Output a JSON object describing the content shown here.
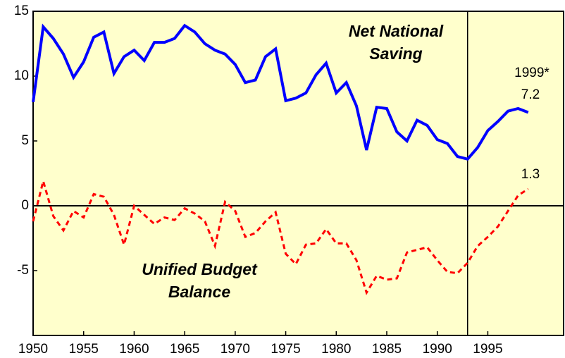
{
  "chart_data": {
    "type": "line",
    "x": [
      1950,
      1951,
      1952,
      1953,
      1954,
      1955,
      1956,
      1957,
      1958,
      1959,
      1960,
      1961,
      1962,
      1963,
      1964,
      1965,
      1966,
      1967,
      1968,
      1969,
      1970,
      1971,
      1972,
      1973,
      1974,
      1975,
      1976,
      1977,
      1978,
      1979,
      1980,
      1981,
      1982,
      1983,
      1984,
      1985,
      1986,
      1987,
      1988,
      1989,
      1990,
      1991,
      1992,
      1993,
      1994,
      1995,
      1996,
      1997,
      1998,
      1999
    ],
    "series": [
      {
        "name": "Net National Saving",
        "color": "#0000ff",
        "dash": false,
        "values": [
          8.0,
          13.8,
          12.9,
          11.7,
          9.9,
          11.1,
          13.0,
          13.4,
          10.2,
          11.5,
          12.0,
          11.2,
          12.6,
          12.6,
          12.9,
          13.9,
          13.4,
          12.5,
          12.0,
          11.7,
          10.9,
          9.5,
          9.7,
          11.5,
          12.1,
          8.1,
          8.3,
          8.7,
          10.1,
          11.0,
          8.7,
          9.5,
          7.7,
          4.3,
          7.6,
          7.5,
          5.7,
          5.0,
          6.6,
          6.2,
          5.1,
          4.8,
          3.8,
          3.6,
          4.5,
          5.8,
          6.5,
          7.3,
          7.5,
          7.2
        ]
      },
      {
        "name": "Unified Budget Balance",
        "color": "#ff0000",
        "dash": true,
        "values": [
          -1.2,
          1.9,
          -0.8,
          -1.9,
          -0.4,
          -0.9,
          0.9,
          0.7,
          -0.7,
          -3.0,
          0.0,
          -0.7,
          -1.4,
          -0.9,
          -1.1,
          -0.2,
          -0.6,
          -1.2,
          -3.1,
          0.3,
          -0.4,
          -2.4,
          -2.1,
          -1.2,
          -0.5,
          -3.7,
          -4.5,
          -3.0,
          -2.9,
          -1.8,
          -2.9,
          -2.9,
          -4.2,
          -6.7,
          -5.4,
          -5.7,
          -5.6,
          -3.6,
          -3.4,
          -3.2,
          -4.2,
          -5.1,
          -5.2,
          -4.4,
          -3.1,
          -2.4,
          -1.6,
          -0.4,
          0.8,
          1.3
        ]
      }
    ],
    "annotation": "1999*",
    "vline_x": 1993,
    "xlim": [
      1950,
      2002.5
    ],
    "xticks": [
      1950,
      1955,
      1960,
      1965,
      1970,
      1975,
      1980,
      1985,
      1990,
      1995
    ],
    "ylim": [
      -10,
      15
    ],
    "yticks": [
      -5,
      0,
      5,
      10,
      15
    ],
    "background": "#ffffcc"
  }
}
